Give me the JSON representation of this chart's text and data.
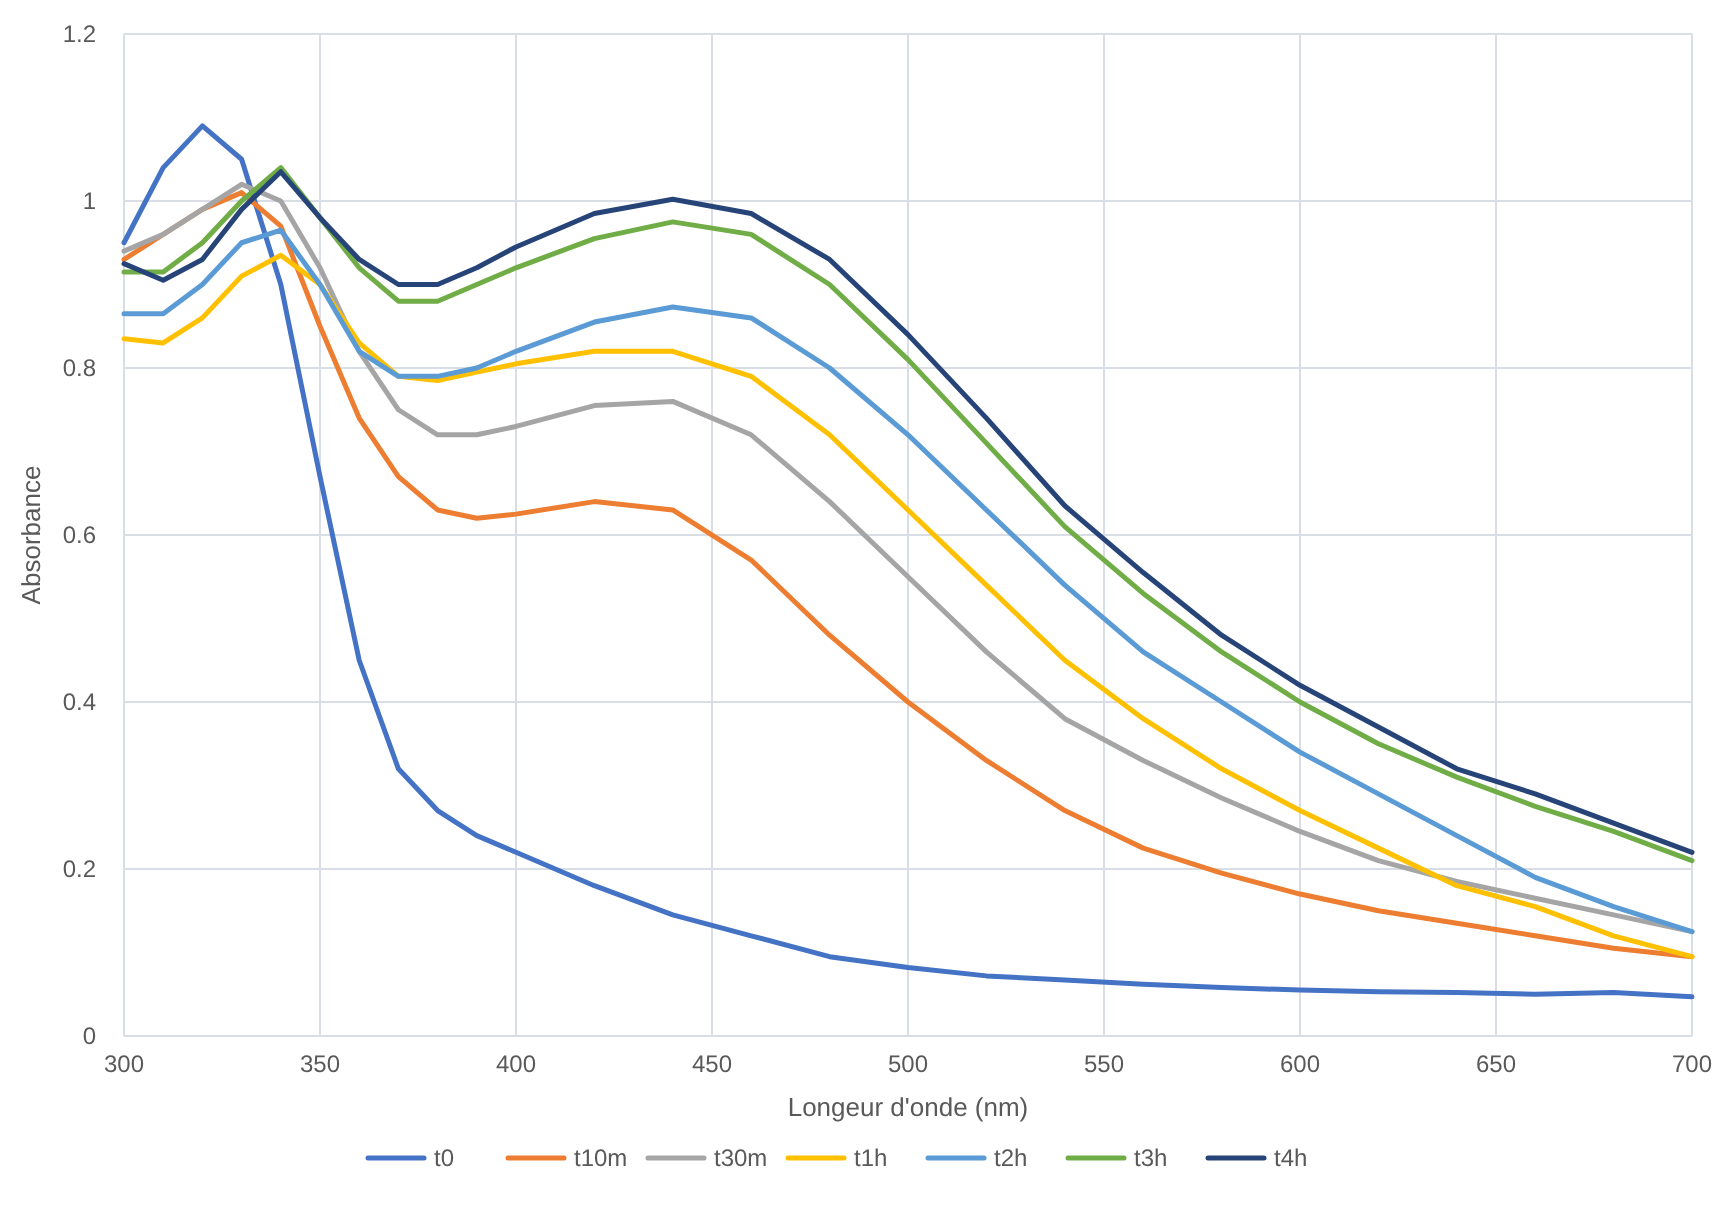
{
  "chart_data": {
    "type": "line",
    "xlabel": "Longeur d'onde (nm)",
    "ylabel": "Absorbance",
    "x": [
      300,
      310,
      320,
      330,
      340,
      350,
      360,
      370,
      380,
      390,
      400,
      420,
      440,
      460,
      480,
      500,
      520,
      540,
      560,
      580,
      600,
      620,
      640,
      660,
      680,
      700
    ],
    "series": [
      {
        "name": "t0",
        "color": "#4472c4",
        "values": [
          0.95,
          1.04,
          1.09,
          1.05,
          0.9,
          0.67,
          0.45,
          0.32,
          0.27,
          0.24,
          0.22,
          0.18,
          0.145,
          0.12,
          0.095,
          0.082,
          0.072,
          0.067,
          0.062,
          0.058,
          0.055,
          0.053,
          0.052,
          0.05,
          0.052,
          0.047
        ]
      },
      {
        "name": "t10m",
        "color": "#ed7d31",
        "values": [
          0.93,
          0.96,
          0.99,
          1.01,
          0.97,
          0.85,
          0.74,
          0.67,
          0.63,
          0.62,
          0.625,
          0.64,
          0.63,
          0.57,
          0.48,
          0.4,
          0.33,
          0.27,
          0.225,
          0.195,
          0.17,
          0.15,
          0.135,
          0.12,
          0.105,
          0.095
        ]
      },
      {
        "name": "t30m",
        "color": "#a5a5a5",
        "values": [
          0.94,
          0.96,
          0.99,
          1.02,
          1.0,
          0.92,
          0.82,
          0.75,
          0.72,
          0.72,
          0.73,
          0.755,
          0.76,
          0.72,
          0.64,
          0.55,
          0.46,
          0.38,
          0.33,
          0.285,
          0.245,
          0.21,
          0.185,
          0.165,
          0.145,
          0.125
        ]
      },
      {
        "name": "t1h",
        "color": "#ffc000",
        "values": [
          0.835,
          0.83,
          0.86,
          0.91,
          0.935,
          0.9,
          0.83,
          0.79,
          0.785,
          0.795,
          0.805,
          0.82,
          0.82,
          0.79,
          0.72,
          0.63,
          0.54,
          0.45,
          0.38,
          0.32,
          0.27,
          0.225,
          0.18,
          0.155,
          0.12,
          0.095
        ]
      },
      {
        "name": "t2h",
        "color": "#5b9bd5",
        "values": [
          0.865,
          0.865,
          0.9,
          0.95,
          0.965,
          0.9,
          0.82,
          0.79,
          0.79,
          0.8,
          0.82,
          0.855,
          0.873,
          0.86,
          0.8,
          0.72,
          0.63,
          0.54,
          0.46,
          0.4,
          0.34,
          0.29,
          0.24,
          0.19,
          0.155,
          0.125
        ]
      },
      {
        "name": "t3h",
        "color": "#70ad47",
        "values": [
          0.915,
          0.915,
          0.95,
          1.0,
          1.04,
          0.98,
          0.92,
          0.88,
          0.88,
          0.9,
          0.92,
          0.955,
          0.975,
          0.96,
          0.9,
          0.81,
          0.71,
          0.61,
          0.53,
          0.46,
          0.4,
          0.35,
          0.31,
          0.275,
          0.245,
          0.21
        ]
      },
      {
        "name": "t4h",
        "color": "#264478",
        "values": [
          0.925,
          0.905,
          0.93,
          0.99,
          1.035,
          0.98,
          0.93,
          0.9,
          0.9,
          0.92,
          0.945,
          0.985,
          1.002,
          0.985,
          0.93,
          0.84,
          0.74,
          0.635,
          0.555,
          0.48,
          0.42,
          0.37,
          0.32,
          0.29,
          0.255,
          0.22
        ]
      }
    ],
    "xlim": [
      300,
      700
    ],
    "xticks": [
      300,
      350,
      400,
      450,
      500,
      550,
      600,
      650,
      700
    ],
    "ylim": [
      0,
      1.2
    ],
    "yticks": [
      0,
      0.2,
      0.4,
      0.6,
      0.8,
      1,
      1.2
    ],
    "grid": true,
    "legend": "bottom",
    "marker": "none",
    "line_style": "solid"
  }
}
